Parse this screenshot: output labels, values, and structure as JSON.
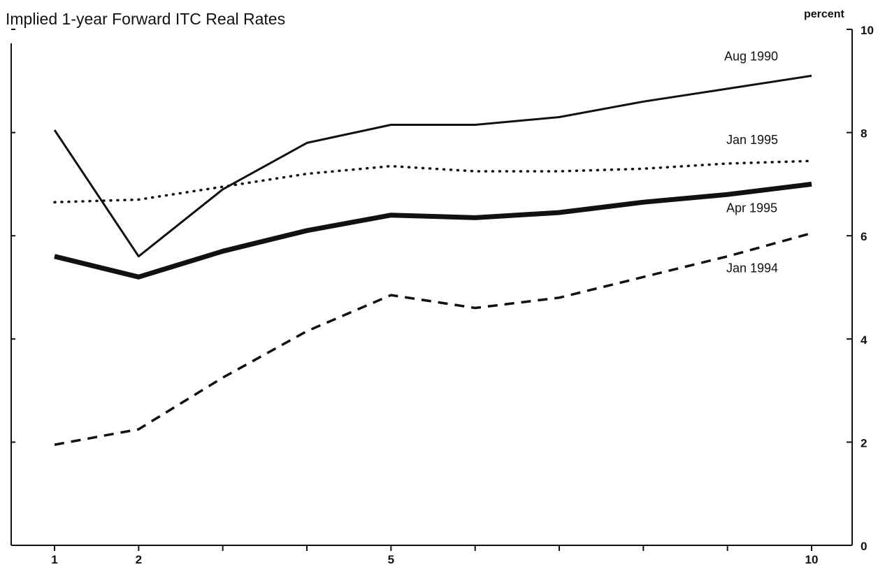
{
  "chart_data": {
    "type": "line",
    "title": "Implied 1-year Forward ITC Real Rates",
    "y_unit": "percent",
    "ylabel": "",
    "xlabel": "",
    "xlim": [
      1,
      10
    ],
    "ylim": [
      0,
      10
    ],
    "x_ticks": [
      1,
      2,
      5,
      10
    ],
    "y_ticks": [
      0,
      2,
      4,
      6,
      8,
      10
    ],
    "y_axis_position": "right",
    "grid": false,
    "x": [
      1,
      2,
      3,
      4,
      5,
      6,
      7,
      8,
      9,
      10
    ],
    "series": [
      {
        "name": "Aug 1990",
        "style": "solid",
        "width": "thin",
        "values": [
          8.05,
          5.6,
          6.9,
          7.8,
          8.15,
          8.15,
          8.3,
          8.6,
          8.85,
          9.1
        ]
      },
      {
        "name": "Jan 1995",
        "style": "dotted",
        "width": "thin",
        "values": [
          6.65,
          6.7,
          6.95,
          7.2,
          7.35,
          7.25,
          7.25,
          7.3,
          7.4,
          7.45
        ]
      },
      {
        "name": "Apr 1995",
        "style": "solid",
        "width": "thick",
        "values": [
          5.6,
          5.2,
          5.7,
          6.1,
          6.4,
          6.35,
          6.45,
          6.65,
          6.8,
          7.0
        ]
      },
      {
        "name": "Jan 1994",
        "style": "dashed",
        "width": "thin",
        "values": [
          1.95,
          2.25,
          3.25,
          4.15,
          4.85,
          4.6,
          4.8,
          5.2,
          5.6,
          6.05
        ]
      }
    ],
    "legend": "inline labels near right end of each line"
  }
}
